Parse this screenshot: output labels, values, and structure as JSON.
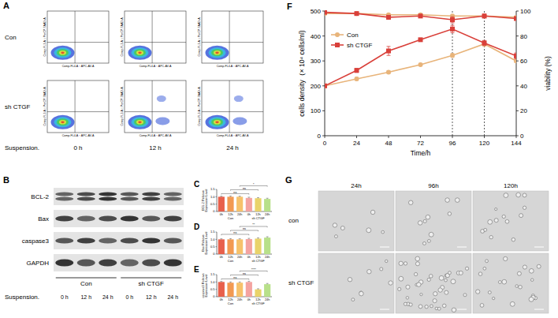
{
  "panel_a": {
    "letter": "A",
    "rows": [
      "Con",
      "sh CTGF"
    ],
    "columns": [
      "0 h",
      "12 h",
      "24 h"
    ],
    "x_label": "Comp-FL4-A :: APC-AV-A",
    "y_label": "Comp-FL3-A :: PerCP-7AAD-A",
    "footer": "Suspension."
  },
  "panel_b": {
    "letter": "B",
    "proteins": [
      "BCL-2",
      "Bax",
      "caspase3",
      "GAPDH"
    ],
    "groups": [
      "Con",
      "sh CTGF"
    ],
    "times": [
      "0 h",
      "12 h",
      "24 h"
    ],
    "footer": "Suspension."
  },
  "chart_data": [
    {
      "panel": "C",
      "type": "bar",
      "y_label": "BCL-2 Relative Expression Level",
      "categories": [
        "0h",
        "12h",
        "24h",
        "0h",
        "12h",
        "24h"
      ],
      "groups": [
        "Con",
        "sh CTGF"
      ],
      "values": [
        1.0,
        1.0,
        1.0,
        0.92,
        0.9,
        0.85
      ],
      "errors": [
        0.04,
        0.05,
        0.04,
        0.05,
        0.04,
        0.05
      ],
      "colors": [
        "#e8604c",
        "#f29a52",
        "#f6c26b",
        "#f4a3a0",
        "#e9d36a",
        "#b8e08a"
      ],
      "ylim": [
        0,
        1.5
      ],
      "yticks": [
        0,
        0.5,
        {
          "value": 1,
          "label": "1.0"
        },
        1.5
      ],
      "annotations": [
        {
          "text": "ns",
          "from": 0,
          "to": 3
        },
        {
          "text": "ns",
          "from": 1,
          "to": 4
        },
        {
          "text": "*",
          "from": 2,
          "to": 5
        }
      ]
    },
    {
      "panel": "D",
      "type": "bar",
      "y_label": "Bax Relative Expression Level",
      "categories": [
        "0h",
        "12h",
        "24h",
        "0h",
        "12h",
        "24h"
      ],
      "groups": [
        "Con",
        "sh CTGF"
      ],
      "values": [
        1.0,
        1.0,
        1.0,
        1.02,
        1.05,
        1.12
      ],
      "errors": [
        0.04,
        0.05,
        0.04,
        0.05,
        0.05,
        0.06
      ],
      "colors": [
        "#e8604c",
        "#f29a52",
        "#f6c26b",
        "#f4a3a0",
        "#e9d36a",
        "#b8e08a"
      ],
      "ylim": [
        0,
        1.5
      ],
      "yticks": [
        0,
        0.5,
        {
          "value": 1,
          "label": "1.0"
        },
        1.5
      ],
      "annotations": [
        {
          "text": "ns",
          "from": 0,
          "to": 3
        },
        {
          "text": "ns",
          "from": 1,
          "to": 4
        },
        {
          "text": "**",
          "from": 2,
          "to": 5
        }
      ]
    },
    {
      "panel": "E",
      "type": "bar",
      "y_label": "caspase3 Relative Expression Level",
      "categories": [
        "0h",
        "12h",
        "24h",
        "0h",
        "12h",
        "24h"
      ],
      "groups": [
        "Con",
        "sh CTGF"
      ],
      "values": [
        1.0,
        0.95,
        0.95,
        1.0,
        0.5,
        0.85
      ],
      "errors": [
        0.04,
        0.05,
        0.05,
        0.05,
        0.04,
        0.05
      ],
      "colors": [
        "#e8604c",
        "#f29a52",
        "#f6c26b",
        "#f4a3a0",
        "#e9d36a",
        "#b8e08a"
      ],
      "ylim": [
        0,
        1.5
      ],
      "yticks": [
        0,
        0.5,
        {
          "value": 1,
          "label": "1.0"
        },
        1.5
      ],
      "annotations": [
        {
          "text": "ns",
          "from": 0,
          "to": 3
        },
        {
          "text": "ns",
          "from": 1,
          "to": 4
        },
        {
          "text": "****",
          "from": 2,
          "to": 5
        }
      ]
    },
    {
      "panel": "F",
      "type": "line",
      "x_label": "Time/h",
      "y_label": "cells density（× 10⁴ cells/ml)",
      "y2_label": "viability (%)",
      "x": [
        0,
        24,
        48,
        72,
        96,
        120,
        144
      ],
      "xlim": [
        0,
        144
      ],
      "xticks": [
        0,
        24,
        48,
        72,
        96,
        120,
        144
      ],
      "ylim": [
        0,
        500
      ],
      "yticks": [
        0,
        100,
        200,
        300,
        400,
        500
      ],
      "y2lim": [
        0,
        100
      ],
      "y2ticks": [
        0,
        20,
        40,
        60,
        80,
        100
      ],
      "vlines": [
        96,
        120
      ],
      "legend": "top-left",
      "series": [
        {
          "name": "Con",
          "color": "#e8b47a",
          "marker": "circle",
          "values": [
            200,
            228,
            255,
            285,
            322,
            368,
            300
          ],
          "errors": [
            5,
            6,
            5,
            5,
            8,
            10,
            6
          ]
        },
        {
          "name": "sh CTGF",
          "color": "#d9403a",
          "marker": "square",
          "values": [
            200,
            262,
            340,
            385,
            428,
            372,
            320
          ],
          "errors": [
            5,
            8,
            18,
            5,
            15,
            10,
            12
          ]
        },
        {
          "name": "Con",
          "color": "#e8b47a",
          "marker": "circle",
          "axis": "y2",
          "values": [
            98,
            98,
            97,
            97,
            96,
            96,
            95
          ],
          "errors": [
            0.5,
            0.6,
            0.8,
            0.6,
            0.8,
            0.7,
            0.8
          ]
        },
        {
          "name": "sh CTGF",
          "color": "#d9403a",
          "marker": "square",
          "axis": "y2",
          "values": [
            99,
            98,
            95,
            96,
            93,
            96,
            94
          ],
          "errors": [
            0.5,
            0.8,
            1.5,
            1.0,
            2.5,
            1.5,
            1.2
          ]
        }
      ]
    }
  ],
  "panel_g": {
    "letter": "G",
    "columns": [
      "24h",
      "96h",
      "120h"
    ],
    "rows": [
      "con",
      "sh CTGF"
    ]
  }
}
